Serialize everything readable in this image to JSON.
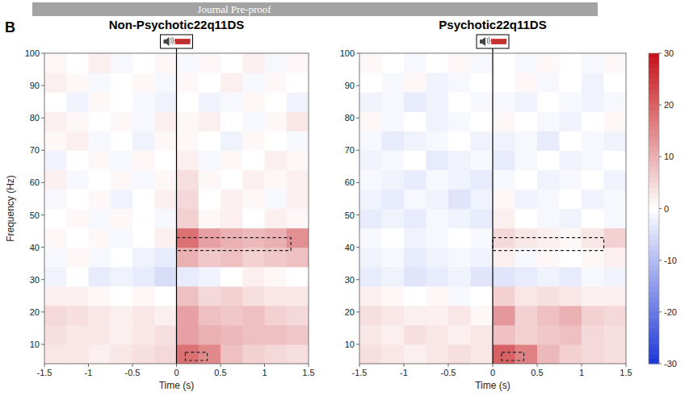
{
  "banner": "Journal Pre-proof",
  "panel_label": "B",
  "chart_data": [
    {
      "type": "heatmap",
      "title": "Non-Psychotic22q11DS",
      "x_label": "Time (s)",
      "y_label": "Frequency (Hz)",
      "xlim": [
        -1.5,
        1.5
      ],
      "ylim": [
        4,
        100
      ],
      "xticks": [
        -1.5,
        -1,
        -0.5,
        0,
        0.5,
        1,
        1.5
      ],
      "yticks": [
        10,
        20,
        30,
        40,
        50,
        60,
        70,
        80,
        90,
        100
      ],
      "stimulus_onset": 0,
      "x_bins": [
        -1.5,
        -1.25,
        -1,
        -0.75,
        -0.5,
        -0.25,
        0,
        0.25,
        0.5,
        0.75,
        1,
        1.25,
        1.5
      ],
      "y_bins": [
        4,
        10,
        16,
        22,
        28,
        34,
        40,
        46,
        52,
        58,
        64,
        70,
        76,
        82,
        88,
        94,
        100
      ],
      "color_range": [
        -30,
        30
      ],
      "cells": [
        [
          3,
          3,
          2,
          3,
          4,
          5,
          18,
          15,
          8,
          6,
          5,
          4
        ],
        [
          4,
          3,
          3,
          2,
          3,
          4,
          12,
          10,
          9,
          8,
          8,
          7
        ],
        [
          5,
          4,
          3,
          2,
          3,
          2,
          12,
          8,
          7,
          8,
          6,
          5
        ],
        [
          2,
          2,
          1,
          0,
          1,
          0,
          8,
          5,
          6,
          4,
          3,
          3
        ],
        [
          -2,
          0,
          -3,
          -2,
          -3,
          -5,
          -3,
          -2,
          0,
          2,
          1,
          0
        ],
        [
          -1,
          1,
          -1,
          0,
          -2,
          -3,
          10,
          7,
          8,
          6,
          7,
          8
        ],
        [
          1,
          0,
          1,
          -1,
          0,
          2,
          18,
          12,
          10,
          9,
          10,
          14
        ],
        [
          0,
          1,
          -1,
          1,
          0,
          -1,
          6,
          1,
          2,
          0,
          2,
          1
        ],
        [
          -1,
          0,
          1,
          -2,
          0,
          2,
          5,
          0,
          2,
          1,
          -1,
          2
        ],
        [
          2,
          -1,
          0,
          1,
          -1,
          1,
          4,
          1,
          0,
          2,
          1,
          2
        ],
        [
          -2,
          0,
          1,
          -1,
          1,
          0,
          2,
          -1,
          1,
          0,
          2,
          1
        ],
        [
          1,
          2,
          -1,
          0,
          -2,
          1,
          1,
          0,
          -2,
          1,
          0,
          -1
        ],
        [
          2,
          1,
          0,
          1,
          -1,
          2,
          1,
          2,
          0,
          -1,
          1,
          3
        ],
        [
          0,
          -2,
          1,
          0,
          -1,
          -2,
          0,
          -2,
          -1,
          1,
          0,
          -2
        ],
        [
          2,
          1,
          -1,
          0,
          1,
          -1,
          1,
          0,
          2,
          -1,
          1,
          0
        ],
        [
          1,
          0,
          2,
          -1,
          0,
          1,
          -1,
          1,
          0,
          2,
          -1,
          1
        ]
      ],
      "boxes": [
        {
          "x": [
            0,
            1.3
          ],
          "y": [
            39,
            43
          ]
        },
        {
          "x": [
            0.1,
            0.35
          ],
          "y": [
            5,
            7.5
          ]
        }
      ]
    },
    {
      "type": "heatmap",
      "title": "Psychotic22q11DS",
      "x_label": "Time (s)",
      "xlim": [
        -1.5,
        1.5
      ],
      "ylim": [
        4,
        100
      ],
      "xticks": [
        -1.5,
        -1,
        -0.5,
        0,
        0.5,
        1,
        1.5
      ],
      "yticks": [
        10,
        20,
        30,
        40,
        50,
        60,
        70,
        80,
        90,
        100
      ],
      "stimulus_onset": 0,
      "x_bins": [
        -1.5,
        -1.25,
        -1,
        -0.75,
        -0.5,
        -0.25,
        0,
        0.25,
        0.5,
        0.75,
        1,
        1.25,
        1.5
      ],
      "y_bins": [
        4,
        10,
        16,
        22,
        28,
        34,
        40,
        46,
        52,
        58,
        64,
        70,
        76,
        82,
        88,
        94,
        100
      ],
      "color_range": [
        -30,
        30
      ],
      "color_ticks": [
        30,
        20,
        10,
        0,
        -10,
        -20,
        -30
      ],
      "cells": [
        [
          4,
          3,
          2,
          3,
          4,
          3,
          20,
          16,
          9,
          6,
          5,
          4
        ],
        [
          3,
          2,
          4,
          3,
          2,
          3,
          8,
          6,
          7,
          8,
          5,
          4
        ],
        [
          4,
          3,
          2,
          2,
          3,
          1,
          13,
          6,
          8,
          10,
          6,
          5
        ],
        [
          2,
          1,
          0,
          1,
          -1,
          0,
          6,
          3,
          4,
          3,
          2,
          2
        ],
        [
          -3,
          -2,
          -4,
          -3,
          -2,
          -4,
          -4,
          -3,
          -2,
          -3,
          -1,
          -2
        ],
        [
          -2,
          -1,
          -3,
          -2,
          -1,
          -2,
          2,
          -1,
          1,
          0,
          1,
          2
        ],
        [
          -1,
          0,
          -2,
          -1,
          0,
          -1,
          5,
          3,
          2,
          1,
          3,
          6
        ],
        [
          -3,
          -2,
          -3,
          -1,
          -2,
          -3,
          2,
          0,
          -1,
          -2,
          0,
          -1
        ],
        [
          -2,
          -3,
          -1,
          -2,
          -4,
          -2,
          1,
          -2,
          -1,
          0,
          -2,
          -1
        ],
        [
          -1,
          -2,
          -3,
          -1,
          -2,
          -3,
          -1,
          0,
          -2,
          -1,
          0,
          -2
        ],
        [
          -2,
          -1,
          0,
          -3,
          -2,
          -1,
          -3,
          -1,
          0,
          -2,
          -1,
          0
        ],
        [
          -1,
          -3,
          -2,
          -1,
          0,
          -2,
          -2,
          -1,
          -3,
          0,
          -1,
          -2
        ],
        [
          1,
          -1,
          0,
          -2,
          -1,
          0,
          1,
          0,
          -1,
          -2,
          0,
          1
        ],
        [
          -2,
          -1,
          -3,
          -2,
          0,
          -1,
          -1,
          -2,
          0,
          -1,
          -2,
          -1
        ],
        [
          0,
          -1,
          1,
          -2,
          -1,
          0,
          0,
          1,
          -1,
          0,
          -2,
          0
        ],
        [
          1,
          0,
          -1,
          0,
          1,
          -1,
          0,
          -1,
          1,
          0,
          -1,
          1
        ]
      ],
      "boxes": [
        {
          "x": [
            0,
            1.25
          ],
          "y": [
            39,
            43
          ]
        },
        {
          "x": [
            0.1,
            0.35
          ],
          "y": [
            5,
            7.5
          ]
        }
      ]
    }
  ]
}
